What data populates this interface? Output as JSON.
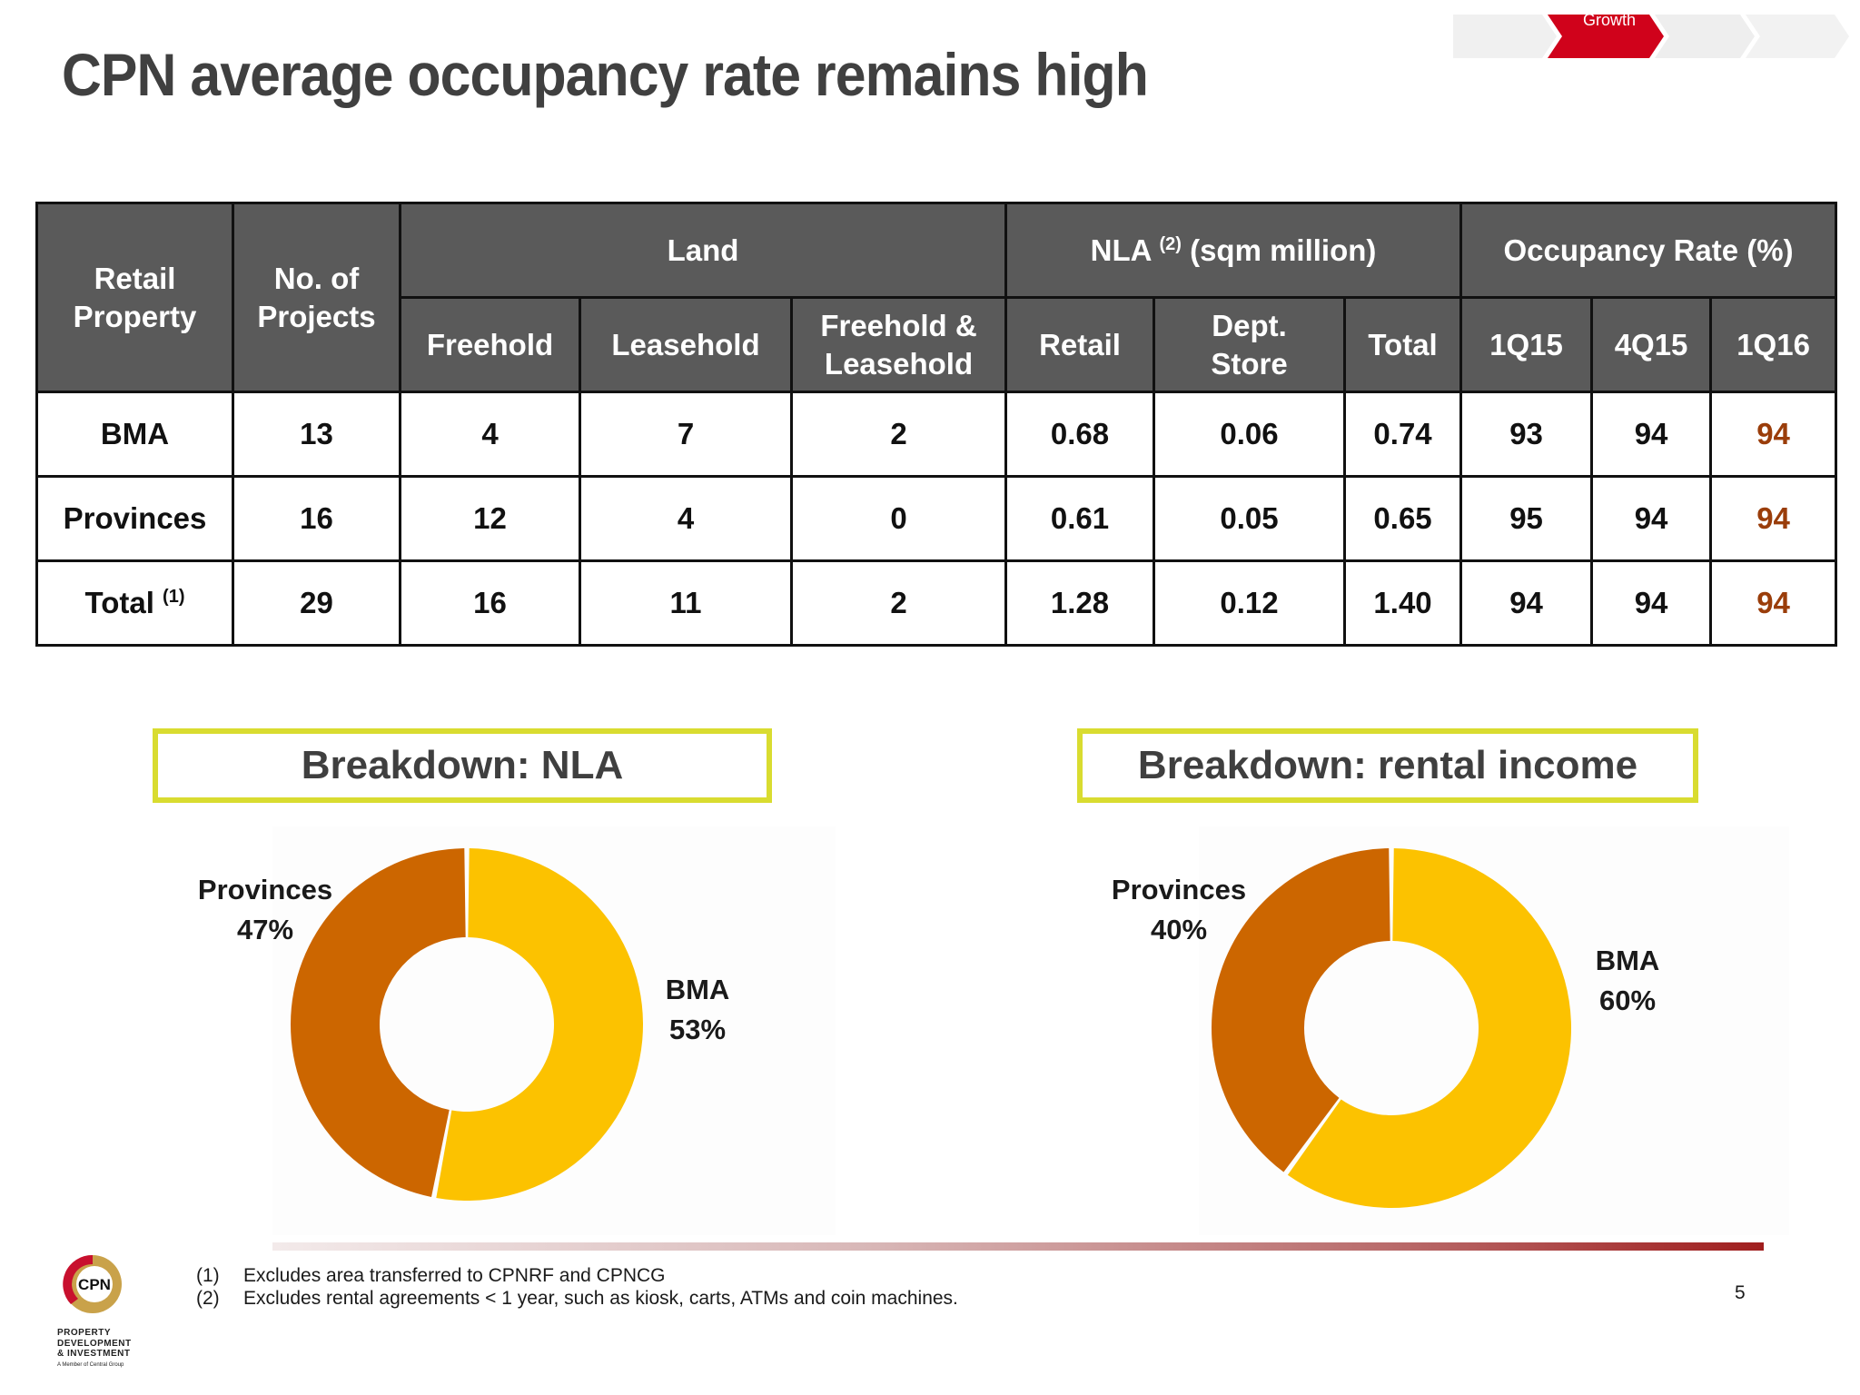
{
  "breadcrumb": {
    "active": "Growth"
  },
  "title": "CPN average occupancy rate remains high",
  "table": {
    "headers": {
      "retail_property": [
        "Retail",
        "Property"
      ],
      "no_of_projects": [
        "No. of",
        "Projects"
      ],
      "land": "Land",
      "nla_pre": "NLA",
      "nla_note": "(2)",
      "nla_post": "(sqm million)",
      "occupancy": "Occupancy Rate (%)",
      "freehold": "Freehold",
      "leasehold": "Leasehold",
      "freehold_leasehold": [
        "Freehold &",
        "Leasehold"
      ],
      "retail": "Retail",
      "dept_store": [
        "Dept.",
        "Store"
      ],
      "total": "Total",
      "q1": "1Q15",
      "q2": "4Q15",
      "q3": "1Q16"
    },
    "rows": [
      {
        "name": "BMA",
        "note": "",
        "projects": "13",
        "freehold": "4",
        "leasehold": "7",
        "fh_lh": "2",
        "retail": "0.68",
        "dept": "0.06",
        "total": "0.74",
        "q1": "93",
        "q2": "94",
        "q3": "94"
      },
      {
        "name": "Provinces",
        "note": "",
        "projects": "16",
        "freehold": "12",
        "leasehold": "4",
        "fh_lh": "0",
        "retail": "0.61",
        "dept": "0.05",
        "total": "0.65",
        "q1": "95",
        "q2": "94",
        "q3": "94"
      },
      {
        "name": "Total",
        "note": "(1)",
        "projects": "29",
        "freehold": "16",
        "leasehold": "11",
        "fh_lh": "2",
        "retail": "1.28",
        "dept": "0.12",
        "total": "1.40",
        "q1": "94",
        "q2": "94",
        "q3": "94"
      }
    ]
  },
  "breakdown_nla": {
    "heading": "Breakdown: NLA",
    "provinces_label": "Provinces",
    "provinces_pct": "47%",
    "bma_label": "BMA",
    "bma_pct": "53%"
  },
  "breakdown_rental": {
    "heading": "Breakdown: rental income",
    "provinces_label": "Provinces",
    "provinces_pct": "40%",
    "bma_label": "BMA",
    "bma_pct": "60%"
  },
  "chart_data": [
    {
      "type": "pie",
      "title": "Breakdown: NLA",
      "categories": [
        "BMA",
        "Provinces"
      ],
      "values": [
        53,
        47
      ],
      "colors": [
        "#fcc200",
        "#cc6600"
      ]
    },
    {
      "type": "pie",
      "title": "Breakdown: rental income",
      "categories": [
        "BMA",
        "Provinces"
      ],
      "values": [
        60,
        40
      ],
      "colors": [
        "#fcc200",
        "#cc6600"
      ]
    }
  ],
  "footnotes": [
    {
      "num": "(1)",
      "text": "Excludes area transferred to CPNRF and CPNCG"
    },
    {
      "num": "(2)",
      "text": "Excludes rental agreements < 1 year, such as kiosk, carts, ATMs and coin machines."
    }
  ],
  "page_number": "5",
  "logo": {
    "mark": "CPN",
    "lines": [
      "PROPERTY",
      "DEVELOPMENT",
      "& INVESTMENT"
    ],
    "tagline": "A Member of Central Group"
  },
  "colors": {
    "header_bg": "#5a5a5a",
    "highlight": "#9a3d0a",
    "bma": "#fcc200",
    "provinces": "#cc6600",
    "box_border": "#d9dc30",
    "accent_red": "#d0021b"
  }
}
